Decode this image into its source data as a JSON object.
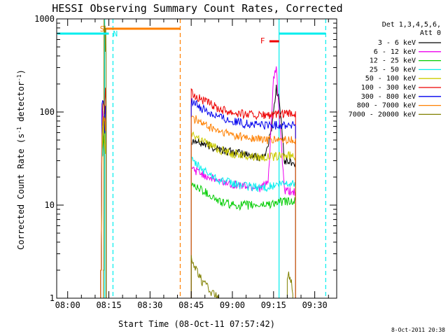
{
  "chart_data": {
    "type": "line",
    "title": "HESSI Observing Summary Count Rates, Corrected",
    "xlabel": "Start Time (08-Oct-11 07:57:42)",
    "ylabel_parts": [
      "Corrected Count Rate (s",
      "-1",
      " detector",
      "-1",
      ")"
    ],
    "x_axis": {
      "unit": "minutes after 08:00",
      "range": [
        -4,
        98
      ],
      "ticks": [
        {
          "value": 0,
          "label": "08:00"
        },
        {
          "value": 15,
          "label": "08:15"
        },
        {
          "value": 30,
          "label": "08:30"
        },
        {
          "value": 45,
          "label": "08:45"
        },
        {
          "value": 60,
          "label": "09:00"
        },
        {
          "value": 75,
          "label": "09:15"
        },
        {
          "value": 90,
          "label": "09:30"
        }
      ]
    },
    "y_axis": {
      "scale": "log",
      "range": [
        1,
        1000
      ],
      "ticks": [
        {
          "value": 1,
          "label": "1"
        },
        {
          "value": 10,
          "label": "10"
        },
        {
          "value": 100,
          "label": "100"
        },
        {
          "value": 1000,
          "label": "1000"
        }
      ]
    },
    "legend": {
      "placement": "right",
      "header": [
        "Det 1,3,4,5,6,",
        "Att 0"
      ],
      "entries": [
        {
          "label": "3 - 6 keV",
          "color": "#000000"
        },
        {
          "label": "6 - 12 keV",
          "color": "#ee00ee"
        },
        {
          "label": "12 - 25 keV",
          "color": "#00cc00"
        },
        {
          "label": "25 - 50 keV",
          "color": "#00eeee"
        },
        {
          "label": "50 - 100 keV",
          "color": "#cccc00"
        },
        {
          "label": "100 - 300 keV",
          "color": "#ee0000"
        },
        {
          "label": "300 - 800 keV",
          "color": "#0000ee"
        },
        {
          "label": "800 - 7000 keV",
          "color": "#ff8000"
        },
        {
          "label": "7000 - 20000 keV",
          "color": "#808000"
        }
      ]
    },
    "annotations": [
      {
        "label": "S",
        "color": "#ff8000",
        "x_start": 14,
        "x_end": 41
      },
      {
        "label": "N",
        "color": "#00eeee",
        "x_start": -4,
        "x_end": 15
      },
      {
        "label": "F",
        "color": "#ee0000",
        "x_start": 73.5,
        "x_end": 77
      }
    ],
    "night_bars": [
      {
        "color": "#00eeee",
        "x_start": 77,
        "x_end": 94,
        "y": 650
      }
    ],
    "vertical_markers": [
      {
        "x": 13.5,
        "color": "#00eeee",
        "style": "solid"
      },
      {
        "x": 16.5,
        "color": "#00eeee",
        "style": "dashed"
      },
      {
        "x": 41,
        "color": "#ff8000",
        "style": "dashed"
      },
      {
        "x": 77,
        "color": "#00eeee",
        "style": "solid"
      },
      {
        "x": 94,
        "color": "#00eeee",
        "style": "dashed"
      }
    ],
    "series": [
      {
        "name": "3 - 6 keV",
        "color": "#000000",
        "spike": {
          "x_start": 12,
          "x_end": 14,
          "peak": 95
        },
        "segment": {
          "x_start": 45,
          "x_end": 83,
          "points": [
            [
              45,
              50
            ],
            [
              50,
              45
            ],
            [
              55,
              40
            ],
            [
              60,
              37
            ],
            [
              65,
              35
            ],
            [
              69,
              33
            ],
            [
              72,
              34
            ],
            [
              74,
              60
            ],
            [
              76,
              180
            ],
            [
              77,
              140
            ],
            [
              79,
              30
            ],
            [
              83,
              28
            ]
          ]
        }
      },
      {
        "name": "6 - 12 keV",
        "color": "#ee00ee",
        "spike": {
          "x_start": 12,
          "x_end": 14,
          "peak": 110
        },
        "segment": {
          "x_start": 45,
          "x_end": 83,
          "points": [
            [
              45,
              25
            ],
            [
              50,
              21
            ],
            [
              55,
              18
            ],
            [
              60,
              17
            ],
            [
              65,
              16
            ],
            [
              70,
              15.5
            ],
            [
              73,
              17
            ],
            [
              75,
              220
            ],
            [
              76,
              300
            ],
            [
              77,
              100
            ],
            [
              79,
              14
            ],
            [
              83,
              14
            ]
          ]
        }
      },
      {
        "name": "12 - 25 keV",
        "color": "#00cc00",
        "spike": {
          "x_start": 12,
          "x_end": 14,
          "peak": 70
        },
        "segment": {
          "x_start": 45,
          "x_end": 83,
          "points": [
            [
              45,
              17
            ],
            [
              50,
              14
            ],
            [
              55,
              11
            ],
            [
              60,
              10
            ],
            [
              65,
              10
            ],
            [
              70,
              10
            ],
            [
              75,
              10.5
            ],
            [
              79,
              11
            ],
            [
              83,
              11
            ]
          ]
        }
      },
      {
        "name": "25 - 50 keV",
        "color": "#00eeee",
        "spike": {
          "x_start": 12,
          "x_end": 14,
          "peak": 80
        },
        "segment": {
          "x_start": 45,
          "x_end": 83,
          "points": [
            [
              45,
              30
            ],
            [
              50,
              23
            ],
            [
              55,
              19
            ],
            [
              60,
              17
            ],
            [
              65,
              16
            ],
            [
              70,
              15.5
            ],
            [
              75,
              16
            ],
            [
              79,
              17
            ],
            [
              83,
              17
            ]
          ]
        }
      },
      {
        "name": "50 - 100 keV",
        "color": "#cccc00",
        "spike": {
          "x_start": 12,
          "x_end": 14,
          "peak": 90
        },
        "segment": {
          "x_start": 45,
          "x_end": 83,
          "points": [
            [
              45,
              60
            ],
            [
              50,
              48
            ],
            [
              55,
              40
            ],
            [
              60,
              36
            ],
            [
              65,
              34
            ],
            [
              70,
              33
            ],
            [
              75,
              33
            ],
            [
              79,
              34
            ],
            [
              83,
              34
            ]
          ]
        }
      },
      {
        "name": "100 - 300 keV",
        "color": "#ee0000",
        "spike": {
          "x_start": 12,
          "x_end": 14,
          "peak": 200
        },
        "segment": {
          "x_start": 45,
          "x_end": 83,
          "points": [
            [
              45,
              160
            ],
            [
              50,
              130
            ],
            [
              55,
              110
            ],
            [
              60,
              100
            ],
            [
              65,
              95
            ],
            [
              70,
              92
            ],
            [
              75,
              92
            ],
            [
              79,
              95
            ],
            [
              83,
              95
            ]
          ]
        }
      },
      {
        "name": "300 - 800 keV",
        "color": "#0000ee",
        "spike": {
          "x_start": 12,
          "x_end": 14,
          "peak": 140
        },
        "segment": {
          "x_start": 45,
          "x_end": 83,
          "points": [
            [
              45,
              130
            ],
            [
              50,
              105
            ],
            [
              55,
              90
            ],
            [
              60,
              80
            ],
            [
              65,
              75
            ],
            [
              70,
              73
            ],
            [
              75,
              72
            ],
            [
              79,
              73
            ],
            [
              83,
              73
            ]
          ]
        }
      },
      {
        "name": "800 - 7000 keV",
        "color": "#ff8000",
        "spike": {
          "x_start": 12,
          "x_end": 14,
          "peak": 100
        },
        "segment": {
          "x_start": 45,
          "x_end": 83,
          "points": [
            [
              45,
              90
            ],
            [
              50,
              72
            ],
            [
              55,
              62
            ],
            [
              60,
              57
            ],
            [
              65,
              53
            ],
            [
              70,
              51
            ],
            [
              75,
              50
            ],
            [
              79,
              50
            ],
            [
              83,
              50
            ]
          ]
        }
      },
      {
        "name": "7000 - 20000 keV",
        "color": "#808000",
        "spike": {
          "x_start": 13,
          "x_end": 14,
          "peak": 1000
        },
        "segment": {
          "x_start": 45,
          "x_end": 55,
          "points": [
            [
              45,
              3
            ],
            [
              46,
              2.2
            ],
            [
              47,
              2
            ],
            [
              48,
              1.8
            ],
            [
              49,
              1.5
            ],
            [
              50,
              1.4
            ],
            [
              51,
              1.3
            ],
            [
              52,
              1.2
            ],
            [
              53,
              1.1
            ],
            [
              54,
              1.05
            ],
            [
              55,
              1
            ]
          ]
        },
        "late": {
          "x_start": 80,
          "x_end": 82,
          "points": [
            [
              80,
              1.8
            ],
            [
              81,
              1.5
            ],
            [
              82,
              1.2
            ]
          ]
        }
      }
    ],
    "footer_timestamp": "8-Oct-2011 20:38"
  }
}
